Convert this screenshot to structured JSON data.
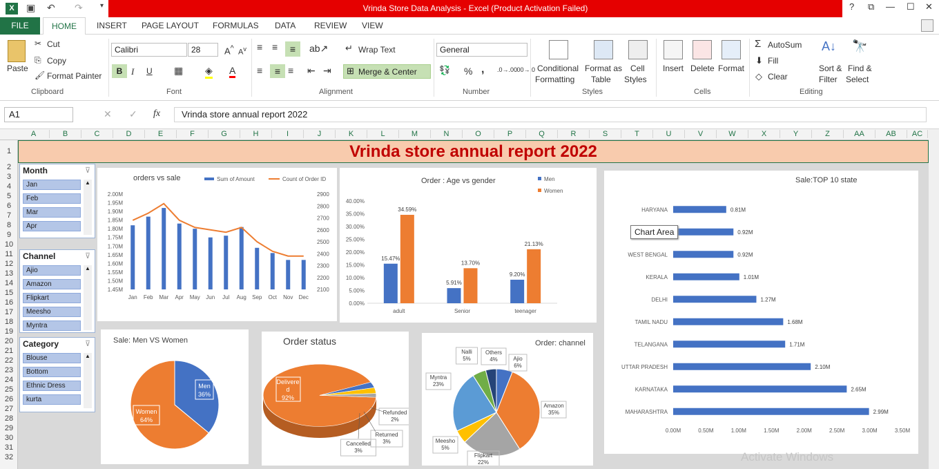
{
  "window": {
    "title": "Vrinda Store Data Analysis -  Excel (Product Activation Failed)",
    "help": "?",
    "restore": "⧉",
    "minimize": "—",
    "maximize": "☐",
    "close": "✕"
  },
  "tabs": {
    "file": "FILE",
    "home": "HOME",
    "insert": "INSERT",
    "page_layout": "PAGE LAYOUT",
    "formulas": "FORMULAS",
    "data": "DATA",
    "review": "REVIEW",
    "view": "VIEW"
  },
  "ribbon": {
    "clipboard": {
      "paste": "Paste",
      "cut": "Cut",
      "copy": "Copy",
      "format_painter": "Format Painter",
      "label": "Clipboard"
    },
    "font": {
      "name": "Calibri",
      "size": "28",
      "bold": "B",
      "italic": "I",
      "underline": "U",
      "label": "Font"
    },
    "alignment": {
      "wrap": "Wrap Text",
      "merge": "Merge & Center",
      "label": "Alignment"
    },
    "number": {
      "format": "General",
      "percent": "%",
      "comma": ",",
      "label": "Number"
    },
    "styles": {
      "conditional": "Conditional",
      "formatting": "Formatting",
      "format_as": "Format as",
      "table": "Table",
      "cell": "Cell",
      "cell_styles": "Styles",
      "label": "Styles"
    },
    "cells": {
      "insert": "Insert",
      "delete": "Delete",
      "format": "Format",
      "label": "Cells"
    },
    "editing": {
      "autosum": "AutoSum",
      "fill": "Fill",
      "clear": "Clear",
      "sort": "Sort &",
      "filter": "Filter",
      "find": "Find &",
      "select": "Select",
      "label": "Editing"
    }
  },
  "formula_bar": {
    "name_box": "A1",
    "fx": "fx",
    "value": "Vrinda store annual report 2022"
  },
  "columns": [
    "A",
    "B",
    "C",
    "D",
    "E",
    "F",
    "G",
    "H",
    "I",
    "J",
    "K",
    "L",
    "M",
    "N",
    "O",
    "P",
    "Q",
    "R",
    "S",
    "T",
    "U",
    "V",
    "W",
    "X",
    "Y",
    "Z",
    "AA",
    "AB",
    "AC"
  ],
  "rows": [
    "1",
    "2",
    "3",
    "4",
    "5",
    "6",
    "7",
    "8",
    "9",
    "10",
    "11",
    "12",
    "13",
    "14",
    "15",
    "16",
    "17",
    "18",
    "19",
    "20",
    "21",
    "22",
    "23",
    "24",
    "25",
    "26",
    "27",
    "28",
    "29",
    "30",
    "31",
    "32"
  ],
  "banner": "Vrinda store annual report 2022",
  "slicers": {
    "month": {
      "title": "Month",
      "items": [
        "Jan",
        "Feb",
        "Mar",
        "Apr"
      ]
    },
    "channel": {
      "title": "Channel",
      "items": [
        "Ajio",
        "Amazon",
        "Flipkart",
        "Meesho",
        "Myntra"
      ]
    },
    "category": {
      "title": "Category",
      "items": [
        "Blouse",
        "Bottom",
        "Ethnic Dress",
        "kurta"
      ]
    }
  },
  "tooltip": "Chart Area",
  "watermark": "Activate Windows",
  "chart_data": [
    {
      "type": "bar",
      "title": "orders vs sale",
      "categories": [
        "Jan",
        "Feb",
        "Mar",
        "Apr",
        "May",
        "Jun",
        "Jul",
        "Aug",
        "Sep",
        "Oct",
        "Nov",
        "Dec"
      ],
      "series": [
        {
          "name": "Sum of Amount",
          "values": [
            1.82,
            1.87,
            1.92,
            1.83,
            1.8,
            1.75,
            1.76,
            1.81,
            1.69,
            1.66,
            1.62,
            1.62
          ]
        },
        {
          "name": "Count of Order ID",
          "values": [
            2680,
            2740,
            2820,
            2680,
            2620,
            2600,
            2580,
            2620,
            2500,
            2420,
            2380,
            2380
          ]
        }
      ],
      "left_ticks": [
        "2.00M",
        "1.95M",
        "1.90M",
        "1.85M",
        "1.80M",
        "1.75M",
        "1.70M",
        "1.65M",
        "1.60M",
        "1.55M",
        "1.50M",
        "1.45M"
      ],
      "right_ticks": [
        "2900",
        "2800",
        "2700",
        "2600",
        "2500",
        "2400",
        "2300",
        "2200",
        "2100"
      ],
      "ylim": [
        1.45,
        2.0
      ],
      "y2lim": [
        2100,
        2900
      ],
      "legend": "top-right"
    },
    {
      "type": "bar",
      "title": "Order : Age vs gender",
      "categories": [
        "adult",
        "Senior",
        "teenager"
      ],
      "series": [
        {
          "name": "Men",
          "values": [
            15.47,
            5.91,
            9.2
          ],
          "labels": [
            "15.47%",
            "5.91%",
            "9.20%"
          ]
        },
        {
          "name": "Women",
          "values": [
            34.59,
            13.7,
            21.13
          ],
          "labels": [
            "34.59%",
            "13.70%",
            "21.13%"
          ]
        }
      ],
      "ticks": [
        "40.00%",
        "35.00%",
        "30.00%",
        "25.00%",
        "20.00%",
        "15.00%",
        "10.00%",
        "5.00%",
        "0.00%"
      ],
      "ylim": [
        0,
        40
      ],
      "legend": "top-right"
    },
    {
      "type": "bar",
      "title": "Sale:TOP 10 state",
      "categories": [
        "HARYANA",
        "ANDHRA PRADESH",
        "WEST BENGAL",
        "KERALA",
        "DELHI",
        "TAMIL NADU",
        "TELANGANA",
        "UTTAR PRADESH",
        "KARNATAKA",
        "MAHARASHTRA"
      ],
      "category_labels": [
        "HARYANA",
        "AN",
        "WEST BENGAL",
        "KERALA",
        "DELHI",
        "TAMIL NADU",
        "TELANGANA",
        "UTTAR PRADESH",
        "KARNATAKA",
        "MAHARASHTRA"
      ],
      "values": [
        0.81,
        0.92,
        0.92,
        1.01,
        1.27,
        1.68,
        1.71,
        2.1,
        2.65,
        2.99
      ],
      "labels": [
        "0.81M",
        "0.92M",
        "0.92M",
        "1.01M",
        "1.27M",
        "1.68M",
        "1.71M",
        "2.10M",
        "2.65M",
        "2.99M"
      ],
      "ticks": [
        "0.00M",
        "0.50M",
        "1.00M",
        "1.50M",
        "2.00M",
        "2.50M",
        "3.00M",
        "3.50M"
      ],
      "xlim": [
        0,
        3.5
      ]
    },
    {
      "type": "pie",
      "title": "Sale: Men VS Women",
      "slices": [
        {
          "name": "Men",
          "value": 36,
          "label": "36%",
          "color": "#4472c4"
        },
        {
          "name": "Women",
          "value": 64,
          "label": "64%",
          "color": "#ed7d31"
        }
      ]
    },
    {
      "type": "pie",
      "title": "Order status",
      "slices": [
        {
          "name": "Delivered",
          "value": 92,
          "label": "92%",
          "color": "#ed7d31"
        },
        {
          "name": "Cancelled",
          "value": 3,
          "label": "3%",
          "color": "#4472c4"
        },
        {
          "name": "Returned",
          "value": 3,
          "label": "3%",
          "color": "#ffc000"
        },
        {
          "name": "Refunded",
          "value": 2,
          "label": "2%",
          "color": "#a5a5a5"
        }
      ]
    },
    {
      "type": "pie",
      "title": "Order: channel",
      "slices": [
        {
          "name": "Ajio",
          "value": 6,
          "label": "6%",
          "color": "#4472c4"
        },
        {
          "name": "Amazon",
          "value": 35,
          "label": "35%",
          "color": "#ed7d31"
        },
        {
          "name": "Flipkart",
          "value": 22,
          "label": "22%",
          "color": "#a5a5a5"
        },
        {
          "name": "Meesho",
          "value": 5,
          "label": "5%",
          "color": "#ffc000"
        },
        {
          "name": "Myntra",
          "value": 23,
          "label": "23%",
          "color": "#5b9bd5"
        },
        {
          "name": "Nalli",
          "value": 5,
          "label": "5%",
          "color": "#70ad47"
        },
        {
          "name": "Others",
          "value": 4,
          "label": "4%",
          "color": "#264478"
        }
      ]
    }
  ]
}
